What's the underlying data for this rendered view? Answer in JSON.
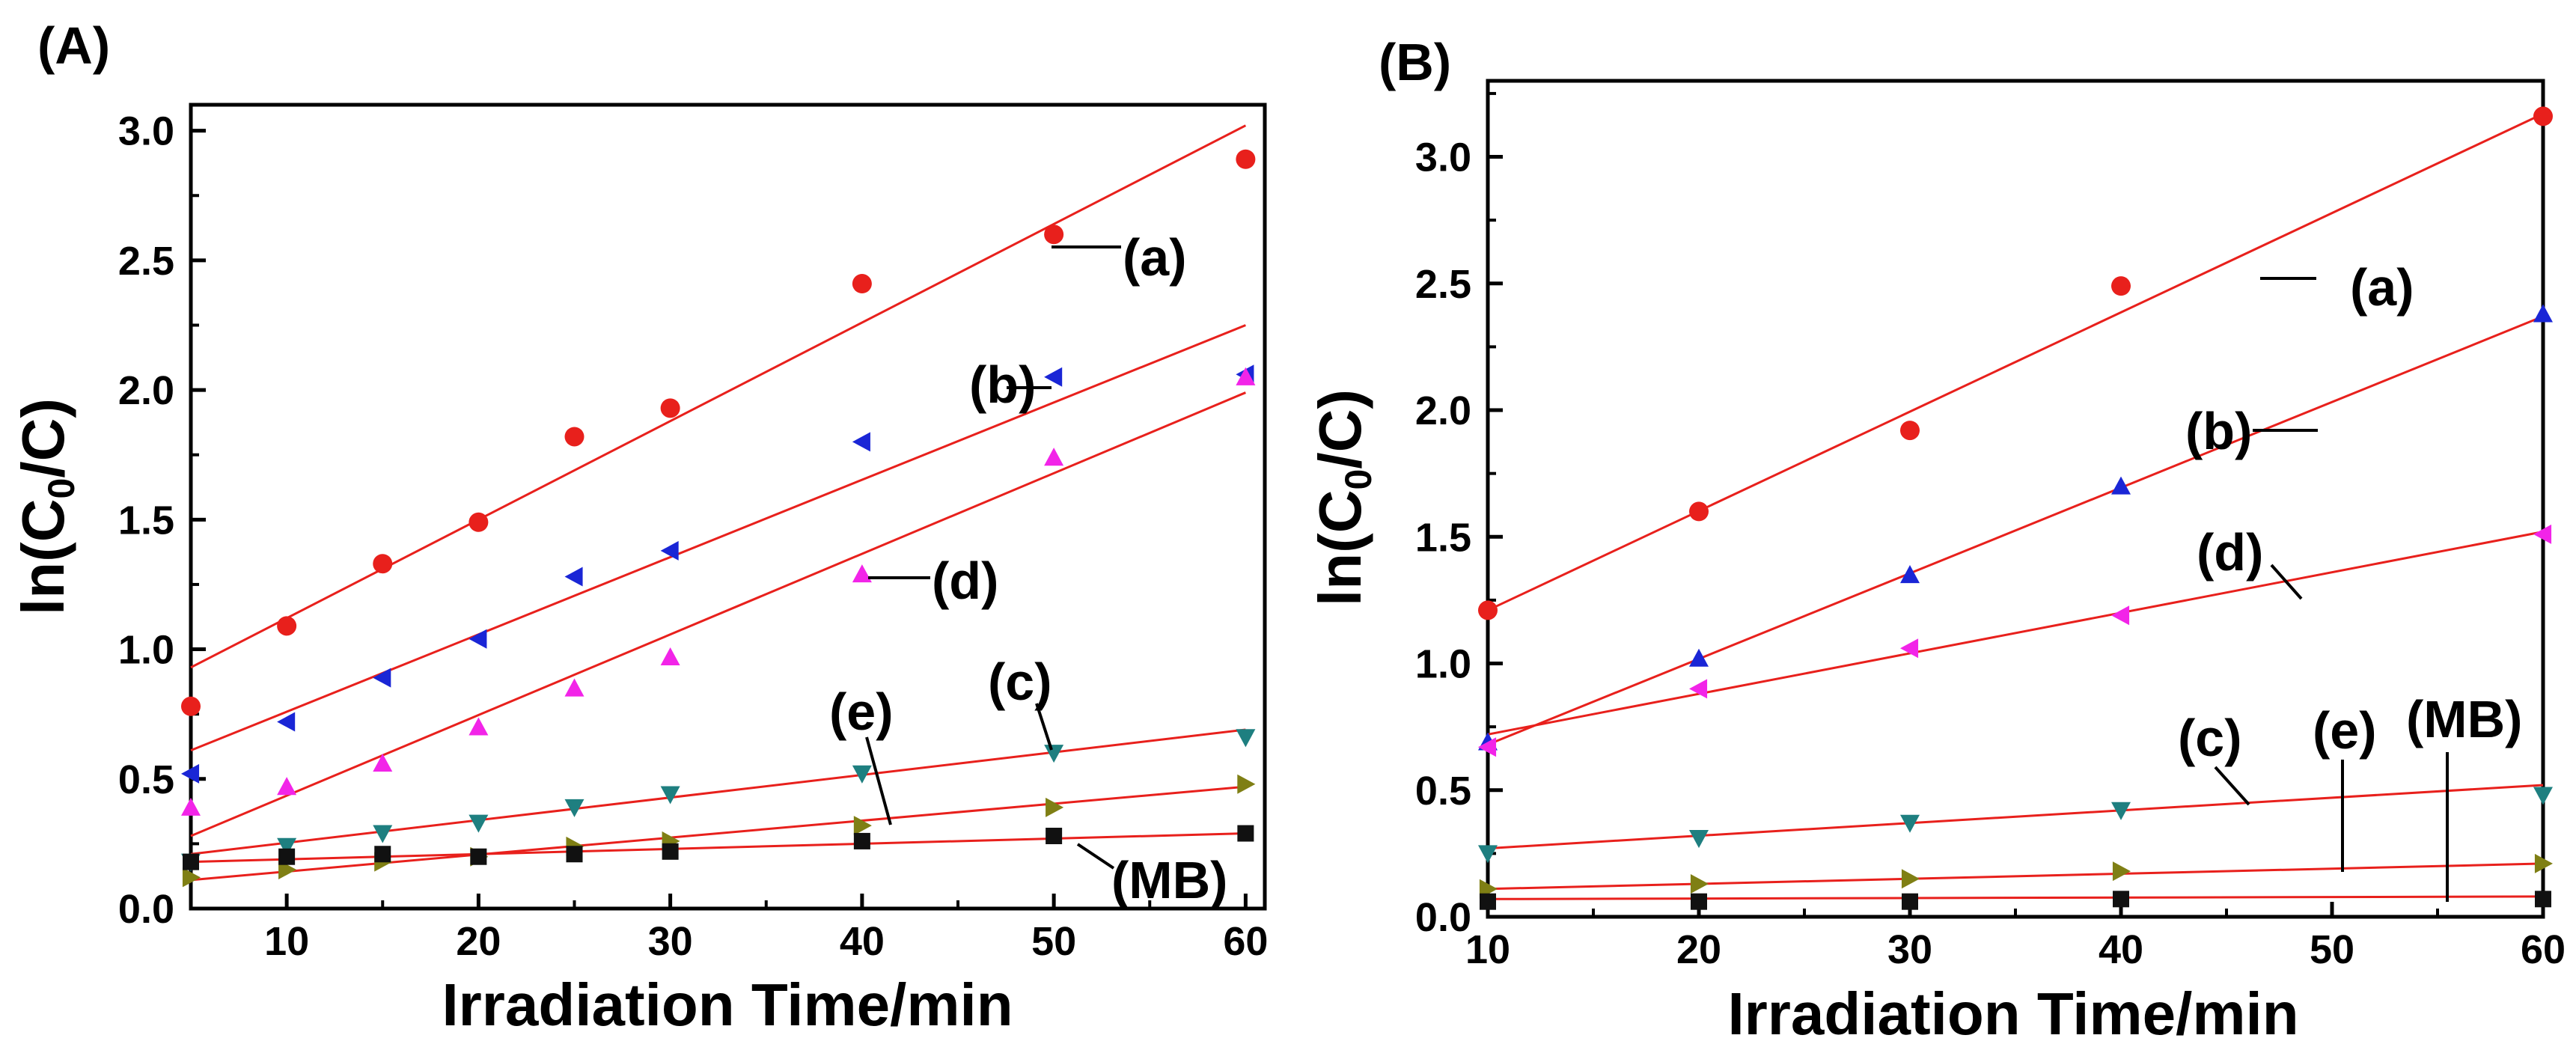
{
  "chart_data": [
    {
      "type": "scatter",
      "panel_label": "(A)",
      "xlabel": "Irradiation Time/min",
      "ylabel": "ln(C0/C)",
      "ylabel_parts": {
        "prefix": "ln(C",
        "sub": "0",
        "suffix": "/C)"
      },
      "xlim": [
        5,
        61
      ],
      "ylim": [
        0,
        3.1
      ],
      "xticks": [
        10,
        20,
        30,
        40,
        50,
        60
      ],
      "xtick_labels": [
        "10",
        "20",
        "30",
        "40",
        "50",
        "60"
      ],
      "yticks": [
        0.0,
        0.5,
        1.0,
        1.5,
        2.0,
        2.5,
        3.0
      ],
      "ytick_labels": [
        "0.0",
        "0.5",
        "1.0",
        "1.5",
        "2.0",
        "2.5",
        "3.0"
      ],
      "series": [
        {
          "name": "(a)",
          "marker": "circle",
          "color": "#e8201c",
          "x": [
            5,
            10,
            15,
            20,
            25,
            30,
            40,
            50,
            60
          ],
          "y": [
            0.78,
            1.09,
            1.33,
            1.49,
            1.82,
            1.93,
            2.41,
            2.6,
            2.89
          ],
          "fit": [
            [
              5,
              0.93
            ],
            [
              60,
              3.02
            ]
          ]
        },
        {
          "name": "(b)",
          "marker": "triangle-left",
          "color": "#1a26d6",
          "x": [
            5,
            10,
            15,
            20,
            25,
            30,
            40,
            50,
            60
          ],
          "y": [
            0.52,
            0.72,
            0.89,
            1.04,
            1.28,
            1.38,
            1.8,
            2.05,
            2.06
          ],
          "fit": [
            [
              5,
              0.61
            ],
            [
              60,
              2.25
            ]
          ]
        },
        {
          "name": "(d)",
          "marker": "triangle-up",
          "color": "#f224e8",
          "x": [
            5,
            10,
            15,
            20,
            25,
            30,
            40,
            50,
            60
          ],
          "y": [
            0.39,
            0.47,
            0.56,
            0.7,
            0.85,
            0.97,
            1.29,
            1.74,
            2.05
          ],
          "fit": [
            [
              5,
              0.28
            ],
            [
              60,
              1.99
            ]
          ]
        },
        {
          "name": "(c)",
          "marker": "triangle-down",
          "color": "#1e7f80",
          "x": [
            5,
            10,
            15,
            20,
            25,
            30,
            40,
            50,
            60
          ],
          "y": [
            0.18,
            0.24,
            0.29,
            0.33,
            0.39,
            0.44,
            0.52,
            0.6,
            0.66
          ],
          "fit": [
            [
              5,
              0.21
            ],
            [
              60,
              0.69
            ]
          ]
        },
        {
          "name": "(e)",
          "marker": "triangle-right",
          "color": "#7f7f14",
          "x": [
            5,
            10,
            15,
            20,
            25,
            30,
            40,
            50,
            60
          ],
          "y": [
            0.12,
            0.15,
            0.18,
            0.2,
            0.24,
            0.26,
            0.32,
            0.39,
            0.48
          ],
          "fit": [
            [
              5,
              0.11
            ],
            [
              60,
              0.47
            ]
          ]
        },
        {
          "name": "(MB)",
          "marker": "square",
          "color": "#111111",
          "x": [
            5,
            10,
            15,
            20,
            25,
            30,
            40,
            50,
            60
          ],
          "y": [
            0.18,
            0.2,
            0.21,
            0.2,
            0.21,
            0.22,
            0.26,
            0.28,
            0.29
          ],
          "fit": [
            [
              5,
              0.18
            ],
            [
              60,
              0.29
            ]
          ]
        }
      ],
      "annotations": [
        "(a)",
        "(b)",
        "(d)",
        "(c)",
        "(e)",
        "(MB)"
      ]
    },
    {
      "type": "scatter",
      "panel_label": "(B)",
      "xlabel": "Irradiation Time/min",
      "ylabel": "ln(C0/C)",
      "ylabel_parts": {
        "prefix": "ln(C",
        "sub": "0",
        "suffix": "/C)"
      },
      "xlim": [
        10,
        60
      ],
      "ylim": [
        0,
        3.3
      ],
      "xticks": [
        10,
        20,
        30,
        40,
        50,
        60
      ],
      "xtick_labels": [
        "10",
        "20",
        "30",
        "40",
        "50",
        "60"
      ],
      "yticks": [
        0.0,
        0.5,
        1.0,
        1.5,
        2.0,
        2.5,
        3.0
      ],
      "ytick_labels": [
        "0.0",
        "0.5",
        "1.0",
        "1.5",
        "2.0",
        "2.5",
        "3.0"
      ],
      "series": [
        {
          "name": "(a)",
          "marker": "circle",
          "color": "#e8201c",
          "x": [
            10,
            20,
            30,
            40,
            60
          ],
          "y": [
            1.21,
            1.6,
            1.92,
            2.49,
            3.16
          ],
          "fit": [
            [
              10,
              1.21
            ],
            [
              60,
              3.17
            ]
          ]
        },
        {
          "name": "(b)",
          "marker": "triangle-up",
          "color": "#1a26d6",
          "x": [
            10,
            20,
            30,
            40,
            60
          ],
          "y": [
            0.69,
            1.02,
            1.35,
            1.7,
            2.38
          ],
          "fit": [
            [
              10,
              0.68
            ],
            [
              60,
              2.37
            ]
          ]
        },
        {
          "name": "(d)",
          "marker": "triangle-left",
          "color": "#f224e8",
          "x": [
            10,
            20,
            30,
            40,
            60
          ],
          "y": [
            0.67,
            0.9,
            1.06,
            1.19,
            1.51
          ],
          "fit": [
            [
              10,
              0.72
            ],
            [
              60,
              1.52
            ]
          ]
        },
        {
          "name": "(c)",
          "marker": "triangle-down",
          "color": "#1e7f80",
          "x": [
            10,
            20,
            30,
            40,
            60
          ],
          "y": [
            0.25,
            0.31,
            0.37,
            0.42,
            0.48
          ],
          "fit": [
            [
              10,
              0.27
            ],
            [
              60,
              0.52
            ]
          ]
        },
        {
          "name": "(e)",
          "marker": "triangle-right",
          "color": "#7f7f14",
          "x": [
            10,
            20,
            30,
            40,
            60
          ],
          "y": [
            0.11,
            0.13,
            0.15,
            0.18,
            0.21
          ],
          "fit": [
            [
              10,
              0.11
            ],
            [
              60,
              0.21
            ]
          ]
        },
        {
          "name": "(MB)",
          "marker": "square",
          "color": "#111111",
          "x": [
            10,
            20,
            30,
            40,
            60
          ],
          "y": [
            0.06,
            0.06,
            0.06,
            0.07,
            0.07
          ],
          "fit": [
            [
              10,
              0.07
            ],
            [
              60,
              0.08
            ]
          ]
        }
      ],
      "annotations": [
        "(a)",
        "(b)",
        "(d)",
        "(c)",
        "(e)",
        "(MB)"
      ]
    }
  ]
}
